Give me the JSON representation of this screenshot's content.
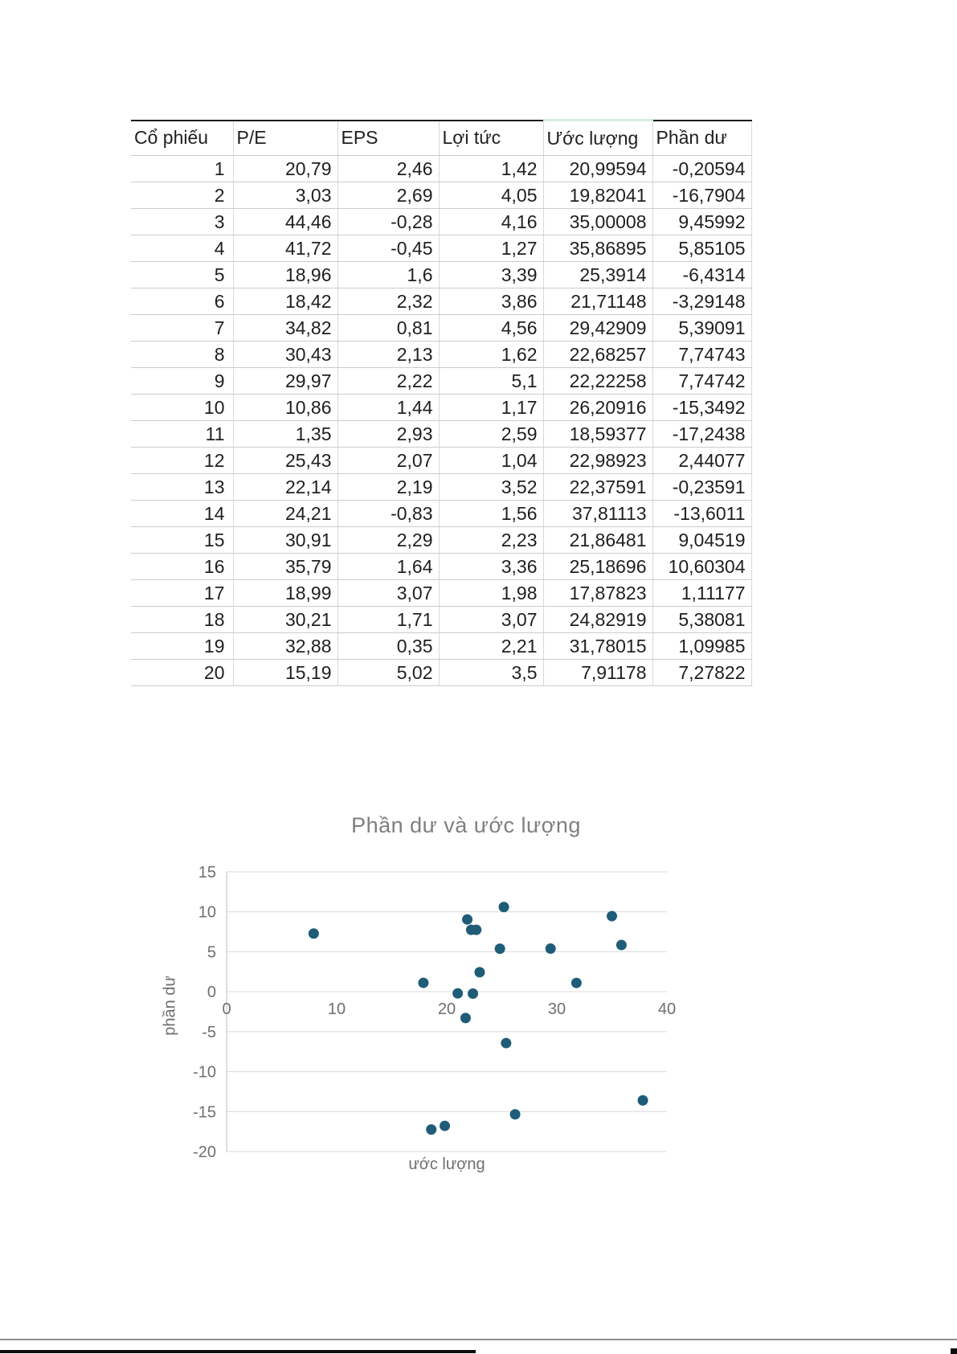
{
  "table": {
    "headers": [
      "Cổ phiếu",
      "P/E",
      "EPS",
      "Lợi tức",
      "Ước lượng",
      "Phần dư"
    ],
    "rows": [
      [
        "1",
        "20,79",
        "2,46",
        "1,42",
        "20,99594",
        "-0,20594"
      ],
      [
        "2",
        "3,03",
        "2,69",
        "4,05",
        "19,82041",
        "-16,7904"
      ],
      [
        "3",
        "44,46",
        "-0,28",
        "4,16",
        "35,00008",
        "9,45992"
      ],
      [
        "4",
        "41,72",
        "-0,45",
        "1,27",
        "35,86895",
        "5,85105"
      ],
      [
        "5",
        "18,96",
        "1,6",
        "3,39",
        "25,3914",
        "-6,4314"
      ],
      [
        "6",
        "18,42",
        "2,32",
        "3,86",
        "21,71148",
        "-3,29148"
      ],
      [
        "7",
        "34,82",
        "0,81",
        "4,56",
        "29,42909",
        "5,39091"
      ],
      [
        "8",
        "30,43",
        "2,13",
        "1,62",
        "22,68257",
        "7,74743"
      ],
      [
        "9",
        "29,97",
        "2,22",
        "5,1",
        "22,22258",
        "7,74742"
      ],
      [
        "10",
        "10,86",
        "1,44",
        "1,17",
        "26,20916",
        "-15,3492"
      ],
      [
        "11",
        "1,35",
        "2,93",
        "2,59",
        "18,59377",
        "-17,2438"
      ],
      [
        "12",
        "25,43",
        "2,07",
        "1,04",
        "22,98923",
        "2,44077"
      ],
      [
        "13",
        "22,14",
        "2,19",
        "3,52",
        "22,37591",
        "-0,23591"
      ],
      [
        "14",
        "24,21",
        "-0,83",
        "1,56",
        "37,81113",
        "-13,6011"
      ],
      [
        "15",
        "30,91",
        "2,29",
        "2,23",
        "21,86481",
        "9,04519"
      ],
      [
        "16",
        "35,79",
        "1,64",
        "3,36",
        "25,18696",
        "10,60304"
      ],
      [
        "17",
        "18,99",
        "3,07",
        "1,98",
        "17,87823",
        "1,11177"
      ],
      [
        "18",
        "30,21",
        "1,71",
        "3,07",
        "24,82919",
        "5,38081"
      ],
      [
        "19",
        "32,88",
        "0,35",
        "2,21",
        "31,78015",
        "1,09985"
      ],
      [
        "20",
        "15,19",
        "5,02",
        "3,5",
        "7,91178",
        "7,27822"
      ]
    ]
  },
  "chart_data": {
    "type": "scatter",
    "title": "Phần dư và ước lượng",
    "xlabel": "ước lượng",
    "ylabel": "phần dư",
    "xlim": [
      0,
      40
    ],
    "ylim": [
      -20,
      15
    ],
    "x_ticks": [
      0,
      10,
      20,
      30,
      40
    ],
    "y_ticks": [
      15,
      10,
      5,
      0,
      -5,
      -10,
      -15,
      -20
    ],
    "grid": true,
    "legend": "none",
    "marker_color": "#1e5c78",
    "gridline_color": "#d9d9d9",
    "axis_line_color": "#bfbfbf",
    "tick_label_color": "#6f6f6f",
    "title_color": "#7f7f7f",
    "points": [
      [
        20.99594,
        -0.20594
      ],
      [
        19.82041,
        -16.7904
      ],
      [
        35.00008,
        9.45992
      ],
      [
        35.86895,
        5.85105
      ],
      [
        25.3914,
        -6.4314
      ],
      [
        21.71148,
        -3.29148
      ],
      [
        29.42909,
        5.39091
      ],
      [
        22.68257,
        7.74743
      ],
      [
        22.22258,
        7.74742
      ],
      [
        26.20916,
        -15.3492
      ],
      [
        18.59377,
        -17.2438
      ],
      [
        22.98923,
        2.44077
      ],
      [
        22.37591,
        -0.23591
      ],
      [
        37.81113,
        -13.6011
      ],
      [
        21.86481,
        9.04519
      ],
      [
        25.18696,
        10.60304
      ],
      [
        17.87823,
        1.11177
      ],
      [
        24.82919,
        5.38081
      ],
      [
        31.78015,
        1.09985
      ],
      [
        7.91178,
        7.27822
      ]
    ]
  }
}
